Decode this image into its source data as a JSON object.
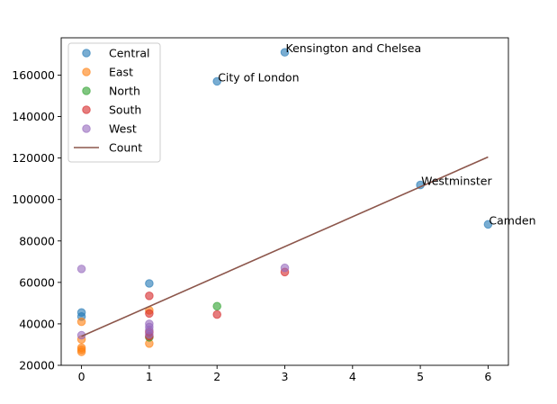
{
  "chart_data": {
    "type": "scatter",
    "title": "",
    "xlabel": "",
    "ylabel": "",
    "xlim": [
      -0.3,
      6.3
    ],
    "ylim": [
      20000,
      178000
    ],
    "xticks": [
      0,
      1,
      2,
      3,
      4,
      5,
      6
    ],
    "yticks": [
      20000,
      40000,
      60000,
      80000,
      100000,
      120000,
      140000,
      160000
    ],
    "grid": false,
    "legend": "upper-left",
    "series": [
      {
        "name": "Central",
        "color": "#1f77b4",
        "points": [
          {
            "x": 0,
            "y": 45500
          },
          {
            "x": 0,
            "y": 43500
          },
          {
            "x": 1,
            "y": 59500
          },
          {
            "x": 2,
            "y": 157000
          },
          {
            "x": 3,
            "y": 171000
          },
          {
            "x": 5,
            "y": 107000
          },
          {
            "x": 6,
            "y": 88000
          }
        ]
      },
      {
        "name": "East",
        "color": "#ff7f0e",
        "points": [
          {
            "x": 0,
            "y": 41000
          },
          {
            "x": 0,
            "y": 32500
          },
          {
            "x": 0,
            "y": 28500
          },
          {
            "x": 0,
            "y": 27500
          },
          {
            "x": 0,
            "y": 26500
          },
          {
            "x": 1,
            "y": 46500
          },
          {
            "x": 1,
            "y": 30500
          }
        ]
      },
      {
        "name": "North",
        "color": "#2ca02c",
        "points": [
          {
            "x": 1,
            "y": 33500
          },
          {
            "x": 2,
            "y": 48500
          }
        ]
      },
      {
        "name": "South",
        "color": "#d62728",
        "points": [
          {
            "x": 1,
            "y": 53500
          },
          {
            "x": 1,
            "y": 45000
          },
          {
            "x": 1,
            "y": 36000
          },
          {
            "x": 1,
            "y": 34000
          },
          {
            "x": 2,
            "y": 44500
          },
          {
            "x": 3,
            "y": 65000
          }
        ]
      },
      {
        "name": "West",
        "color": "#9467bd",
        "points": [
          {
            "x": 0,
            "y": 66500
          },
          {
            "x": 0,
            "y": 34500
          },
          {
            "x": 1,
            "y": 40000
          },
          {
            "x": 1,
            "y": 38500
          },
          {
            "x": 1,
            "y": 37000
          },
          {
            "x": 1,
            "y": 35000
          },
          {
            "x": 3,
            "y": 67000
          }
        ]
      }
    ],
    "trendline": {
      "name": "Count",
      "color": "#8c564b",
      "x": [
        0,
        6
      ],
      "y": [
        34000,
        120500
      ]
    },
    "annotations": [
      {
        "text": "Kensington and Chelsea",
        "x": 3,
        "y": 171000
      },
      {
        "text": "City of London",
        "x": 2,
        "y": 157000
      },
      {
        "text": "Westminster",
        "x": 5,
        "y": 107000
      },
      {
        "text": "Camden",
        "x": 6,
        "y": 88000
      }
    ]
  }
}
